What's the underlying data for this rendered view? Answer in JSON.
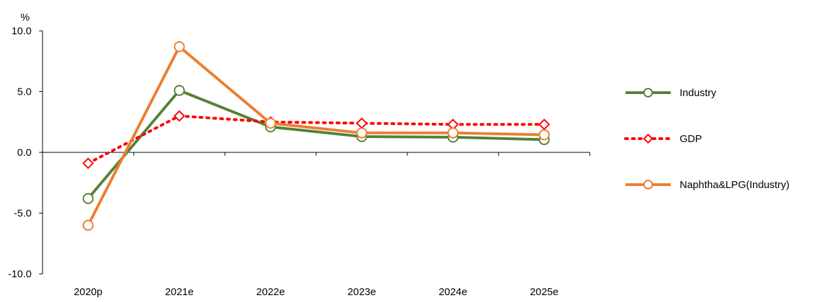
{
  "chart_data": {
    "type": "line",
    "title": "",
    "xlabel": "",
    "ylabel": "%",
    "ylim": [
      -10,
      10
    ],
    "yticks": [
      "10.0",
      "5.0",
      "0.0",
      "-5.0",
      "-10.0"
    ],
    "ytick_values": [
      10,
      5,
      0,
      -5,
      -10
    ],
    "categories": [
      "2020p",
      "2021e",
      "2022e",
      "2023e",
      "2024e",
      "2025e"
    ],
    "grid": false,
    "legend_position": "right",
    "series": [
      {
        "name": "Industry",
        "color": "#548235",
        "style": "solid",
        "marker": "circle",
        "values": [
          -3.8,
          5.1,
          2.1,
          1.3,
          1.25,
          1.05
        ]
      },
      {
        "name": "GDP",
        "color": "#ff0000",
        "style": "dotted",
        "marker": "diamond",
        "values": [
          -0.9,
          3.0,
          2.5,
          2.4,
          2.3,
          2.3
        ]
      },
      {
        "name": "Naphtha&LPG(Industry)",
        "color": "#ed7d31",
        "style": "solid",
        "marker": "circle",
        "values": [
          -6.0,
          8.7,
          2.4,
          1.6,
          1.6,
          1.45
        ]
      }
    ]
  }
}
